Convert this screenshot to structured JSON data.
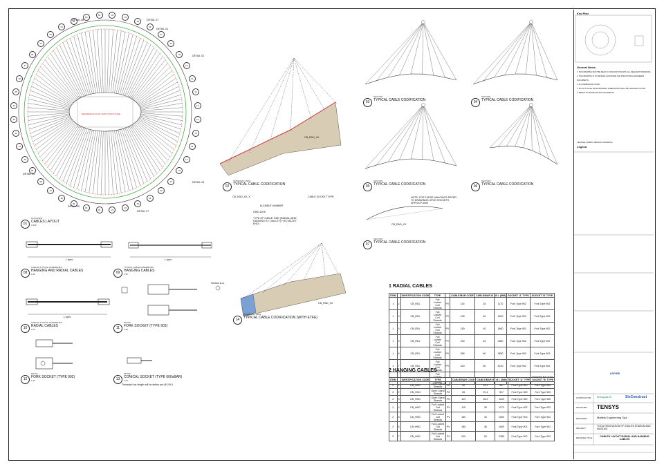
{
  "drawings": {
    "d01": {
      "num": "01",
      "scale": "PLAN VIEW",
      "title": "CABLES LAYOUT",
      "ratio": "1:500"
    },
    "d02": {
      "num": "02",
      "scale": "ISOMETRIC VIEW",
      "title": "TYPICAL CABLE CODIFICATION"
    },
    "d03": {
      "num": "03",
      "scale": "SECTION",
      "title": "TYPICAL CABLE CODIFICATION"
    },
    "d04": {
      "num": "04",
      "scale": "SECTION",
      "title": "TYPICAL CABLE CODIFICATION"
    },
    "d05": {
      "num": "05",
      "scale": "SECTION",
      "title": "TYPICAL CABLE CODIFICATION"
    },
    "d06": {
      "num": "06",
      "scale": "SECTION",
      "title": "TYPICAL CABLE CODIFICATION"
    },
    "d07": {
      "num": "07",
      "scale": "SECTION",
      "title": "TYPICAL CABLE CODIFICATION"
    },
    "d08": {
      "num": "08",
      "scale": "CABLES TYPICAL ASSEMBLIES",
      "title": "HANGING AND RADIAL CABLES",
      "ratio": "1:50"
    },
    "d09": {
      "num": "09",
      "scale": "TYPICAL CABLE ASSEMBLIES",
      "title": "HANGING CABLES",
      "ratio": "1:50"
    },
    "d10": {
      "num": "10",
      "scale": "CABLES TYPICAL ASSEMBLIES",
      "title": "RADIAL CABLES",
      "ratio": "1:50"
    },
    "d11": {
      "num": "11",
      "scale": "DETAIL",
      "title": "FORK SOCKET (TYPE 903)",
      "ratio": "1:20"
    },
    "d12": {
      "num": "12",
      "scale": "DETAIL",
      "title": "FORK SOCKET (TYPE 902)",
      "ratio": "1:20"
    },
    "d13": {
      "num": "13",
      "scale": "DETAIL",
      "title": "CONICAL SOCKET (TYPE 600xBAR)",
      "ratio": "1:20"
    },
    "d14": {
      "num": "14",
      "scale": "ISOMETRIC VIEW",
      "title": "TYPICAL CABLE CODIFICATION (WITH ETFE)"
    }
  },
  "plan": {
    "details": [
      "DETAIL 08",
      "DETAIL 07",
      "DETAIL 01",
      "DETAIL 02",
      "DETAIL 03",
      "DETAIL 06",
      "DETAIL 05",
      "DETAIL 07"
    ],
    "center_text": "REFERENCE ROOF MAIN STRUCTURE",
    "rim_numbers_left": [
      "33",
      "34",
      "35",
      "36",
      "37",
      "38",
      "39",
      "40",
      "41",
      "42",
      "43",
      "44",
      "45",
      "46",
      "47",
      "48",
      "49",
      "50",
      "51",
      "52",
      "53",
      "54"
    ],
    "rim_numbers_right": [
      "03",
      "04",
      "05",
      "06",
      "07",
      "08",
      "09",
      "10",
      "11",
      "12",
      "13",
      "14",
      "15",
      "16",
      "17",
      "18",
      "19",
      "20",
      "21",
      "22",
      "23",
      "24"
    ]
  },
  "legend_02": {
    "code": "CB_RAD_XX_X",
    "element_number": "ELEMENT NUMBER",
    "axis": "GRID AXIS",
    "type": "TYPE OF CABLE: RAD (RADIAL) AND HANGING H,F (VALLEY) H,E (VALLEY END)",
    "socket": "CABLE SOCKET TYPE",
    "label": "CB_RAD_XX"
  },
  "note_07": "NOTE: FOR THESE HANGINGS REFER TO DRAWINGS UPON SOCKETS SHPD/CP-4002",
  "section_label": "CB_RAD_XX",
  "assembly_lengths": {
    "l08": "L spec",
    "l09": "L spec",
    "l10": "L spec"
  },
  "section_aa": "Section A-A",
  "thread_note": "Threaded bar length will be define pre-fill 2014",
  "tables": {
    "radial": {
      "title": "1 RADIAL CABLES",
      "headers": [
        "ITEM",
        "",
        "IDENTIFICATION CODE",
        "TYPE",
        "",
        "CABLE/BAR CODE",
        "CABLE/BAR Ø",
        "Ø L (MM)",
        "SOCKET 'A' TYPE",
        "SOCKET 'B' TYPE"
      ],
      "rows": [
        [
          "1",
          "2",
          "CB_RDL",
          "Full Locked Coil Strands",
          "PV",
          "115",
          "35",
          "1170",
          "Fork Type 902",
          "Fork Type 902"
        ],
        [
          "1",
          "3",
          "CB_RDL",
          "Full Locked Coil Strands",
          "PV",
          "150",
          "40",
          "1500",
          "Fork Type 903",
          "Fork Type 902"
        ],
        [
          "1",
          "4",
          "CB_RDL",
          "Full Locked Coil Strands",
          "PV",
          "180",
          "40",
          "1800",
          "Fork Type 902",
          "Fork Type 902"
        ],
        [
          "1",
          "5",
          "CB_RDL",
          "Full Locked Coil Strands",
          "PV",
          "240",
          "45",
          "2380",
          "Fork Type 902",
          "Fork Type 902"
        ],
        [
          "1",
          "6",
          "CB_RDL",
          "Full Locked Coil Strands",
          "PV",
          "385",
          "60",
          "3850",
          "Fork Type 903",
          "Fork Type 903"
        ],
        [
          "1",
          "7",
          "CB_RDL",
          "Full Locked Coil Strands",
          "PV",
          "420",
          "60",
          "4220",
          "Fork Type 902",
          "Fork Type 902"
        ],
        [
          "1",
          "8",
          "CB_RDL",
          "Full Locked Coil Strands",
          "PV",
          "195",
          "45",
          "1900",
          "Fork Type 902",
          "Threaded Bar Type 600"
        ]
      ]
    },
    "hanging": {
      "title": "2 HANGING CABLES",
      "headers": [
        "ITEM",
        "",
        "IDENTIFICATION CODE",
        "TYPE",
        "",
        "CABLE/BAR CODE",
        "CABLE/BAR Ø",
        "Ø L (MM)",
        "SOCKET 'A' TYPE",
        "SOCKET 'B' TYPE"
      ],
      "rows": [
        [
          "2",
          "1",
          "CB_HNG",
          "Open Spiral Strands",
          "PG",
          "40",
          "25.1",
          "387",
          "Fork Type 960",
          "Fork Type 960"
        ],
        [
          "2",
          "2",
          "CB_HNG",
          "Open Spiral Strands",
          "PG",
          "55",
          "29.4",
          "537",
          "Fork Type 960",
          "Fork Type 960"
        ],
        [
          "2",
          "3",
          "CB_HNG",
          "Open Spiral Strands",
          "PG",
          "120",
          "38.3",
          "1169",
          "Fork Type 960",
          "Fork Type 960"
        ],
        [
          "2",
          "4",
          "CB_HNG",
          "Full Locked Coil Strands",
          "PV",
          "115",
          "35",
          "1170",
          "Fork Type 902",
          "Fork Type 902"
        ],
        [
          "2",
          "5",
          "CB_HNG",
          "Full Locked Coil Strands",
          "PV",
          "150",
          "40",
          "1500",
          "Fork Type 903",
          "Fork Type 902"
        ],
        [
          "2",
          "6",
          "CB_HNG",
          "Full Locked Coil Strands",
          "PV",
          "180",
          "45",
          "1800",
          "Fork Type 902",
          "Fork Type 902"
        ],
        [
          "2",
          "7",
          "CB_HNG",
          "Full Locked Coil Strands",
          "PV",
          "240",
          "50",
          "2380",
          "Fork Type 902",
          "Fork Type 902"
        ]
      ]
    }
  },
  "titleblock": {
    "key_plan": "Key Plan",
    "general_notes": "General Notes",
    "notes": [
      "THIS DRAWING MUST BE READ IN CONJUNCTION WITH ALL RELEVANT DRAWINGS.",
      "THIS DRAWING IS TO BE READ ALONGSIDE THE STRUCTURAL ENGINEERS DOCUMENTS.",
      "ALL DIMENSIONS IN MM.",
      "DO NOT SCALE FROM DRAWING. DIMENSIONS SHALL BE CHECKED ON SITE.",
      "REFER TO SPECIFICATION DOCUMENTS."
    ],
    "legend_hdr": "TENSILE FABRIC DESIGN DRAWING",
    "legend": "Legend",
    "contractor": "CONTRACTOR",
    "designer": "DESIGNER",
    "engineer": "ENGINEER",
    "project": "PROJECT",
    "drawing_title_hdr": "DRAWING TITLE",
    "brand1": "tensysarch",
    "brand2": "SixConstruct",
    "tensys": "TENSYS",
    "maffeis": "Maffeis Engineering Spa",
    "project_text": "TOTAL RENOVATION OF KHALIFA STADIUM AND MUSEUM",
    "drawing_title": "CABLES LAYOUT RADIAL AND HANGING CABLES",
    "aspire": "ASPIRE"
  }
}
